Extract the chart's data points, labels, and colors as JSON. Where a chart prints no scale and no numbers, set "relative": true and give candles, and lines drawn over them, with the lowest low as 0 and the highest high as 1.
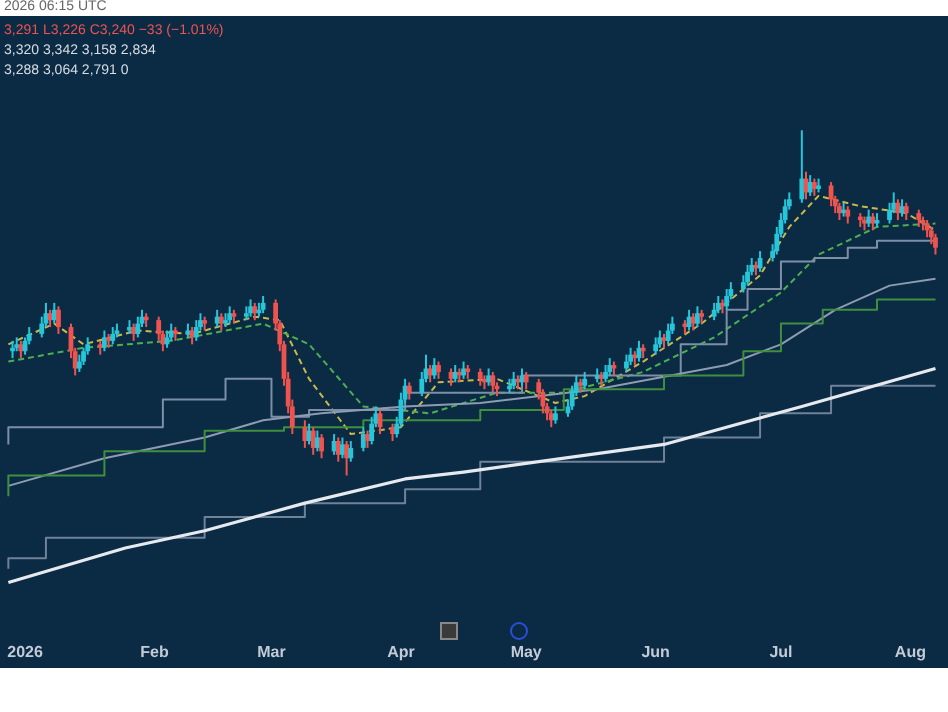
{
  "chart_data": {
    "type": "candlestick",
    "relative": true,
    "annotations": [
      "2026 06:15 UTC",
      "3,291 L3,226 C3,240 −33 (−1.01%)",
      "3,320 3,342 3,158 2,834",
      "3,288 3,064 2,791 0"
    ],
    "xlim": [
      "2025-12-26",
      "2026-08-10"
    ],
    "xticks": [
      {
        "value": "2026-01-01",
        "label": "2026"
      },
      {
        "value": "2026-02-01",
        "label": "Feb"
      },
      {
        "value": "2026-03-01",
        "label": "Mar"
      },
      {
        "value": "2026-04-01",
        "label": "Apr"
      },
      {
        "value": "2026-05-01",
        "label": "May"
      },
      {
        "value": "2026-06-01",
        "label": "Jun"
      },
      {
        "value": "2026-07-01",
        "label": "Jul"
      },
      {
        "value": "2026-08-01",
        "label": "Aug"
      }
    ],
    "grid": false,
    "legend": false,
    "x": [
      "2025-12-29",
      "2025-12-30",
      "2025-12-31",
      "2026-01-01",
      "2026-01-02",
      "2026-01-05",
      "2026-01-06",
      "2026-01-07",
      "2026-01-08",
      "2026-01-09",
      "2026-01-12",
      "2026-01-13",
      "2026-01-14",
      "2026-01-15",
      "2026-01-16",
      "2026-01-19",
      "2026-01-20",
      "2026-01-21",
      "2026-01-22",
      "2026-01-23",
      "2026-01-26",
      "2026-01-27",
      "2026-01-28",
      "2026-01-29",
      "2026-01-30",
      "2026-02-02",
      "2026-02-03",
      "2026-02-04",
      "2026-02-05",
      "2026-02-06",
      "2026-02-09",
      "2026-02-10",
      "2026-02-11",
      "2026-02-12",
      "2026-02-13",
      "2026-02-16",
      "2026-02-17",
      "2026-02-18",
      "2026-02-19",
      "2026-02-20",
      "2026-02-23",
      "2026-02-24",
      "2026-02-25",
      "2026-02-26",
      "2026-02-27",
      "2026-03-02",
      "2026-03-03",
      "2026-03-04",
      "2026-03-05",
      "2026-03-06",
      "2026-03-09",
      "2026-03-10",
      "2026-03-11",
      "2026-03-12",
      "2026-03-13",
      "2026-03-16",
      "2026-03-17",
      "2026-03-18",
      "2026-03-19",
      "2026-03-20",
      "2026-03-23",
      "2026-03-24",
      "2026-03-25",
      "2026-03-26",
      "2026-03-27",
      "2026-03-30",
      "2026-03-31",
      "2026-04-01",
      "2026-04-02",
      "2026-04-03",
      "2026-04-06",
      "2026-04-07",
      "2026-04-08",
      "2026-04-09",
      "2026-04-10",
      "2026-04-13",
      "2026-04-14",
      "2026-04-15",
      "2026-04-16",
      "2026-04-17",
      "2026-04-20",
      "2026-04-21",
      "2026-04-22",
      "2026-04-23",
      "2026-04-24",
      "2026-04-27",
      "2026-04-28",
      "2026-04-29",
      "2026-04-30",
      "2026-05-01",
      "2026-05-04",
      "2026-05-05",
      "2026-05-06",
      "2026-05-07",
      "2026-05-08",
      "2026-05-11",
      "2026-05-12",
      "2026-05-13",
      "2026-05-14",
      "2026-05-15",
      "2026-05-18",
      "2026-05-19",
      "2026-05-20",
      "2026-05-21",
      "2026-05-22",
      "2026-05-25",
      "2026-05-26",
      "2026-05-27",
      "2026-05-28",
      "2026-05-29",
      "2026-06-01",
      "2026-06-02",
      "2026-06-03",
      "2026-06-04",
      "2026-06-05",
      "2026-06-08",
      "2026-06-09",
      "2026-06-10",
      "2026-06-11",
      "2026-06-12",
      "2026-06-15",
      "2026-06-16",
      "2026-06-17",
      "2026-06-18",
      "2026-06-19",
      "2026-06-22",
      "2026-06-23",
      "2026-06-24",
      "2026-06-25",
      "2026-06-26",
      "2026-06-29",
      "2026-06-30",
      "2026-07-01",
      "2026-07-02",
      "2026-07-03",
      "2026-07-06",
      "2026-07-07",
      "2026-07-08",
      "2026-07-09",
      "2026-07-10",
      "2026-07-13",
      "2026-07-14",
      "2026-07-15",
      "2026-07-16",
      "2026-07-17",
      "2026-07-20",
      "2026-07-21",
      "2026-07-22",
      "2026-07-23",
      "2026-07-24",
      "2026-07-27",
      "2026-07-28",
      "2026-07-29",
      "2026-07-30",
      "2026-07-31",
      "2026-08-03",
      "2026-08-04",
      "2026-08-05",
      "2026-08-06",
      "2026-08-07"
    ],
    "ohlc": [
      [
        0.36,
        0.39,
        0.34,
        0.37
      ],
      [
        0.37,
        0.4,
        0.36,
        0.38
      ],
      [
        0.38,
        0.39,
        0.34,
        0.36
      ],
      [
        0.36,
        0.4,
        0.35,
        0.39
      ],
      [
        0.39,
        0.43,
        0.38,
        0.41
      ],
      [
        0.41,
        0.46,
        0.4,
        0.44
      ],
      [
        0.44,
        0.5,
        0.43,
        0.47
      ],
      [
        0.47,
        0.48,
        0.43,
        0.45
      ],
      [
        0.45,
        0.5,
        0.44,
        0.48
      ],
      [
        0.48,
        0.49,
        0.41,
        0.43
      ],
      [
        0.43,
        0.44,
        0.34,
        0.36
      ],
      [
        0.36,
        0.37,
        0.29,
        0.31
      ],
      [
        0.31,
        0.35,
        0.3,
        0.33
      ],
      [
        0.33,
        0.37,
        0.32,
        0.36
      ],
      [
        0.36,
        0.4,
        0.35,
        0.38
      ],
      [
        0.38,
        0.39,
        0.35,
        0.37
      ],
      [
        0.37,
        0.42,
        0.36,
        0.4
      ],
      [
        0.4,
        0.41,
        0.37,
        0.39
      ],
      [
        0.39,
        0.43,
        0.38,
        0.41
      ],
      [
        0.41,
        0.44,
        0.4,
        0.42
      ],
      [
        0.42,
        0.45,
        0.41,
        0.43
      ],
      [
        0.43,
        0.44,
        0.39,
        0.41
      ],
      [
        0.41,
        0.46,
        0.4,
        0.44
      ],
      [
        0.44,
        0.48,
        0.43,
        0.46
      ],
      [
        0.46,
        0.47,
        0.43,
        0.45
      ],
      [
        0.45,
        0.46,
        0.39,
        0.41
      ],
      [
        0.41,
        0.42,
        0.36,
        0.38
      ],
      [
        0.38,
        0.42,
        0.37,
        0.4
      ],
      [
        0.4,
        0.44,
        0.39,
        0.42
      ],
      [
        0.42,
        0.43,
        0.39,
        0.41
      ],
      [
        0.41,
        0.44,
        0.4,
        0.42
      ],
      [
        0.42,
        0.43,
        0.38,
        0.4
      ],
      [
        0.4,
        0.45,
        0.39,
        0.43
      ],
      [
        0.43,
        0.47,
        0.42,
        0.45
      ],
      [
        0.45,
        0.46,
        0.42,
        0.44
      ],
      [
        0.44,
        0.48,
        0.43,
        0.46
      ],
      [
        0.46,
        0.47,
        0.42,
        0.44
      ],
      [
        0.44,
        0.47,
        0.43,
        0.45
      ],
      [
        0.45,
        0.49,
        0.44,
        0.47
      ],
      [
        0.47,
        0.48,
        0.44,
        0.46
      ],
      [
        0.46,
        0.49,
        0.45,
        0.47
      ],
      [
        0.47,
        0.51,
        0.46,
        0.49
      ],
      [
        0.49,
        0.5,
        0.45,
        0.47
      ],
      [
        0.47,
        0.5,
        0.46,
        0.48
      ],
      [
        0.48,
        0.52,
        0.47,
        0.5
      ],
      [
        0.5,
        0.51,
        0.42,
        0.44
      ],
      [
        0.44,
        0.45,
        0.36,
        0.38
      ],
      [
        0.38,
        0.39,
        0.26,
        0.28
      ],
      [
        0.28,
        0.3,
        0.18,
        0.2
      ],
      [
        0.2,
        0.22,
        0.12,
        0.14
      ],
      [
        0.14,
        0.16,
        0.08,
        0.1
      ],
      [
        0.1,
        0.15,
        0.09,
        0.13
      ],
      [
        0.13,
        0.14,
        0.06,
        0.08
      ],
      [
        0.08,
        0.13,
        0.07,
        0.11
      ],
      [
        0.11,
        0.12,
        0.05,
        0.07
      ],
      [
        0.07,
        0.12,
        0.06,
        0.1
      ],
      [
        0.1,
        0.11,
        0.04,
        0.06
      ],
      [
        0.06,
        0.11,
        0.05,
        0.09
      ],
      [
        0.09,
        0.1,
        0.0,
        0.05
      ],
      [
        0.05,
        0.1,
        0.04,
        0.08
      ],
      [
        0.08,
        0.14,
        0.07,
        0.12
      ],
      [
        0.12,
        0.13,
        0.08,
        0.1
      ],
      [
        0.1,
        0.17,
        0.09,
        0.15
      ],
      [
        0.15,
        0.2,
        0.14,
        0.18
      ],
      [
        0.18,
        0.19,
        0.12,
        0.14
      ],
      [
        0.14,
        0.15,
        0.1,
        0.12
      ],
      [
        0.12,
        0.17,
        0.11,
        0.15
      ],
      [
        0.15,
        0.24,
        0.14,
        0.22
      ],
      [
        0.22,
        0.28,
        0.21,
        0.26
      ],
      [
        0.26,
        0.27,
        0.22,
        0.24
      ],
      [
        0.24,
        0.3,
        0.23,
        0.28
      ],
      [
        0.28,
        0.35,
        0.27,
        0.31
      ],
      [
        0.31,
        0.32,
        0.27,
        0.29
      ],
      [
        0.29,
        0.34,
        0.28,
        0.32
      ],
      [
        0.32,
        0.33,
        0.28,
        0.3
      ],
      [
        0.3,
        0.31,
        0.26,
        0.28
      ],
      [
        0.28,
        0.32,
        0.27,
        0.3
      ],
      [
        0.3,
        0.31,
        0.27,
        0.29
      ],
      [
        0.29,
        0.33,
        0.28,
        0.31
      ],
      [
        0.31,
        0.32,
        0.28,
        0.3
      ],
      [
        0.3,
        0.31,
        0.26,
        0.28
      ],
      [
        0.28,
        0.29,
        0.25,
        0.27
      ],
      [
        0.27,
        0.31,
        0.26,
        0.29
      ],
      [
        0.29,
        0.3,
        0.24,
        0.26
      ],
      [
        0.26,
        0.27,
        0.23,
        0.25
      ],
      [
        0.25,
        0.28,
        0.24,
        0.26
      ],
      [
        0.26,
        0.3,
        0.25,
        0.28
      ],
      [
        0.28,
        0.29,
        0.25,
        0.27
      ],
      [
        0.27,
        0.31,
        0.26,
        0.29
      ],
      [
        0.29,
        0.3,
        0.25,
        0.27
      ],
      [
        0.27,
        0.28,
        0.22,
        0.24
      ],
      [
        0.24,
        0.25,
        0.18,
        0.2
      ],
      [
        0.2,
        0.21,
        0.16,
        0.18
      ],
      [
        0.18,
        0.19,
        0.14,
        0.16
      ],
      [
        0.16,
        0.2,
        0.15,
        0.18
      ],
      [
        0.18,
        0.22,
        0.17,
        0.2
      ],
      [
        0.2,
        0.26,
        0.19,
        0.24
      ],
      [
        0.24,
        0.29,
        0.23,
        0.27
      ],
      [
        0.27,
        0.28,
        0.24,
        0.26
      ],
      [
        0.26,
        0.3,
        0.25,
        0.28
      ],
      [
        0.28,
        0.31,
        0.27,
        0.29
      ],
      [
        0.29,
        0.3,
        0.26,
        0.28
      ],
      [
        0.28,
        0.32,
        0.27,
        0.3
      ],
      [
        0.3,
        0.34,
        0.29,
        0.32
      ],
      [
        0.32,
        0.33,
        0.29,
        0.31
      ],
      [
        0.31,
        0.35,
        0.3,
        0.33
      ],
      [
        0.33,
        0.37,
        0.32,
        0.35
      ],
      [
        0.35,
        0.36,
        0.32,
        0.34
      ],
      [
        0.34,
        0.39,
        0.33,
        0.37
      ],
      [
        0.37,
        0.38,
        0.34,
        0.36
      ],
      [
        0.36,
        0.4,
        0.35,
        0.38
      ],
      [
        0.38,
        0.42,
        0.37,
        0.4
      ],
      [
        0.4,
        0.41,
        0.37,
        0.39
      ],
      [
        0.39,
        0.44,
        0.38,
        0.42
      ],
      [
        0.42,
        0.46,
        0.41,
        0.44
      ],
      [
        0.44,
        0.45,
        0.41,
        0.43
      ],
      [
        0.43,
        0.48,
        0.42,
        0.46
      ],
      [
        0.46,
        0.47,
        0.42,
        0.44
      ],
      [
        0.44,
        0.49,
        0.43,
        0.47
      ],
      [
        0.47,
        0.48,
        0.44,
        0.46
      ],
      [
        0.46,
        0.5,
        0.45,
        0.48
      ],
      [
        0.48,
        0.52,
        0.47,
        0.5
      ],
      [
        0.5,
        0.51,
        0.47,
        0.49
      ],
      [
        0.49,
        0.54,
        0.48,
        0.52
      ],
      [
        0.52,
        0.56,
        0.51,
        0.54
      ],
      [
        0.54,
        0.58,
        0.53,
        0.56
      ],
      [
        0.56,
        0.61,
        0.55,
        0.59
      ],
      [
        0.59,
        0.63,
        0.58,
        0.61
      ],
      [
        0.61,
        0.62,
        0.58,
        0.6
      ],
      [
        0.6,
        0.65,
        0.59,
        0.63
      ],
      [
        0.63,
        0.67,
        0.62,
        0.65
      ],
      [
        0.65,
        0.72,
        0.64,
        0.7
      ],
      [
        0.7,
        0.76,
        0.69,
        0.74
      ],
      [
        0.74,
        0.8,
        0.73,
        0.78
      ],
      [
        0.78,
        0.82,
        0.77,
        0.8
      ],
      [
        0.8,
        1.0,
        0.79,
        0.86
      ],
      [
        0.86,
        0.88,
        0.8,
        0.82
      ],
      [
        0.82,
        0.87,
        0.81,
        0.85
      ],
      [
        0.85,
        0.86,
        0.81,
        0.83
      ],
      [
        0.83,
        0.86,
        0.82,
        0.84
      ],
      [
        0.84,
        0.85,
        0.78,
        0.8
      ],
      [
        0.8,
        0.81,
        0.76,
        0.78
      ],
      [
        0.78,
        0.79,
        0.74,
        0.76
      ],
      [
        0.76,
        0.79,
        0.75,
        0.77
      ],
      [
        0.77,
        0.78,
        0.73,
        0.75
      ],
      [
        0.75,
        0.76,
        0.72,
        0.74
      ],
      [
        0.74,
        0.75,
        0.71,
        0.73
      ],
      [
        0.73,
        0.77,
        0.72,
        0.75
      ],
      [
        0.75,
        0.76,
        0.71,
        0.73
      ],
      [
        0.73,
        0.76,
        0.72,
        0.74
      ],
      [
        0.74,
        0.79,
        0.73,
        0.77
      ],
      [
        0.77,
        0.82,
        0.76,
        0.79
      ],
      [
        0.79,
        0.8,
        0.74,
        0.76
      ],
      [
        0.76,
        0.8,
        0.75,
        0.78
      ],
      [
        0.78,
        0.79,
        0.74,
        0.76
      ],
      [
        0.76,
        0.77,
        0.72,
        0.74
      ],
      [
        0.74,
        0.75,
        0.71,
        0.73
      ],
      [
        0.73,
        0.74,
        0.69,
        0.71
      ],
      [
        0.71,
        0.72,
        0.67,
        0.69
      ],
      [
        0.69,
        0.7,
        0.64,
        0.66
      ]
    ],
    "series": [
      {
        "type": "line",
        "color": "#e6e9ee",
        "line_style": "solid",
        "x": [
          "2025-12-28",
          "2026-01-25",
          "2026-02-13",
          "2026-03-09",
          "2026-04-02",
          "2026-04-16",
          "2026-06-03",
          "2026-07-06",
          "2026-08-07"
        ],
        "values": [
          -0.31,
          -0.21,
          -0.16,
          -0.08,
          -0.01,
          0.01,
          0.09,
          0.2,
          0.31
        ]
      },
      {
        "type": "step",
        "color": "#6f8299",
        "line_style": "solid",
        "x": [
          "2025-12-28",
          "2026-01-06",
          "2026-02-13",
          "2026-03-09",
          "2026-04-02",
          "2026-04-20",
          "2026-06-03",
          "2026-06-26",
          "2026-07-13",
          "2026-08-07"
        ],
        "values": [
          -0.27,
          -0.24,
          -0.18,
          -0.12,
          -0.08,
          -0.04,
          0.04,
          0.11,
          0.18,
          0.26
        ]
      },
      {
        "type": "step",
        "color": "#3f8f3f",
        "line_style": "solid",
        "x": [
          "2025-12-28",
          "2026-01-20",
          "2026-02-13",
          "2026-03-04",
          "2026-03-23",
          "2026-04-20",
          "2026-05-10",
          "2026-06-03",
          "2026-06-22",
          "2026-07-01",
          "2026-07-11",
          "2026-07-24",
          "2026-08-07"
        ],
        "values": [
          -0.06,
          0.0,
          0.07,
          0.13,
          0.14,
          0.16,
          0.19,
          0.25,
          0.29,
          0.36,
          0.44,
          0.48,
          0.51
        ]
      },
      {
        "type": "line",
        "color": "#8d9cb0",
        "line_style": "solid",
        "x": [
          "2025-12-28",
          "2026-01-20",
          "2026-02-13",
          "2026-02-27",
          "2026-03-13",
          "2026-04-02",
          "2026-04-20",
          "2026-05-18",
          "2026-06-18",
          "2026-07-01",
          "2026-07-14",
          "2026-07-27",
          "2026-08-07"
        ],
        "values": [
          -0.03,
          0.05,
          0.11,
          0.16,
          0.18,
          0.2,
          0.21,
          0.25,
          0.32,
          0.38,
          0.48,
          0.55,
          0.57
        ]
      },
      {
        "type": "step",
        "color": "#7d8fa6",
        "line_style": "solid",
        "x": [
          "2025-12-28",
          "2026-01-12",
          "2026-02-03",
          "2026-02-18",
          "2026-03-01",
          "2026-03-10",
          "2026-04-02",
          "2026-04-30",
          "2026-06-07",
          "2026-06-18",
          "2026-06-23",
          "2026-07-01",
          "2026-07-09",
          "2026-07-17",
          "2026-07-24",
          "2026-08-07"
        ],
        "values": [
          0.09,
          0.14,
          0.14,
          0.22,
          0.28,
          0.17,
          0.19,
          0.24,
          0.29,
          0.38,
          0.48,
          0.54,
          0.62,
          0.63,
          0.66,
          0.68
        ]
      },
      {
        "type": "line",
        "color": "#4caf50",
        "line_style": "dashed",
        "x": [
          "2025-12-28",
          "2026-01-15",
          "2026-02-05",
          "2026-02-27",
          "2026-03-10",
          "2026-03-23",
          "2026-04-08",
          "2026-04-24",
          "2026-05-10",
          "2026-05-29",
          "2026-06-15",
          "2026-07-01",
          "2026-07-10",
          "2026-07-24",
          "2026-08-07"
        ],
        "values": [
          0.33,
          0.37,
          0.39,
          0.44,
          0.38,
          0.2,
          0.18,
          0.24,
          0.24,
          0.3,
          0.4,
          0.53,
          0.64,
          0.72,
          0.73
        ]
      },
      {
        "type": "line",
        "color": "#c9b84a",
        "line_style": "dashed",
        "x": [
          "2025-12-28",
          "2026-01-08",
          "2026-01-15",
          "2026-01-28",
          "2026-02-10",
          "2026-02-25",
          "2026-03-03",
          "2026-03-10",
          "2026-03-20",
          "2026-04-01",
          "2026-04-10",
          "2026-04-24",
          "2026-05-08",
          "2026-05-15",
          "2026-05-29",
          "2026-06-12",
          "2026-06-26",
          "2026-07-03",
          "2026-07-10",
          "2026-07-20",
          "2026-07-31",
          "2026-08-07"
        ],
        "values": [
          0.38,
          0.44,
          0.38,
          0.42,
          0.41,
          0.46,
          0.45,
          0.28,
          0.12,
          0.14,
          0.27,
          0.28,
          0.21,
          0.23,
          0.33,
          0.44,
          0.58,
          0.72,
          0.81,
          0.78,
          0.76,
          0.71
        ]
      }
    ]
  }
}
